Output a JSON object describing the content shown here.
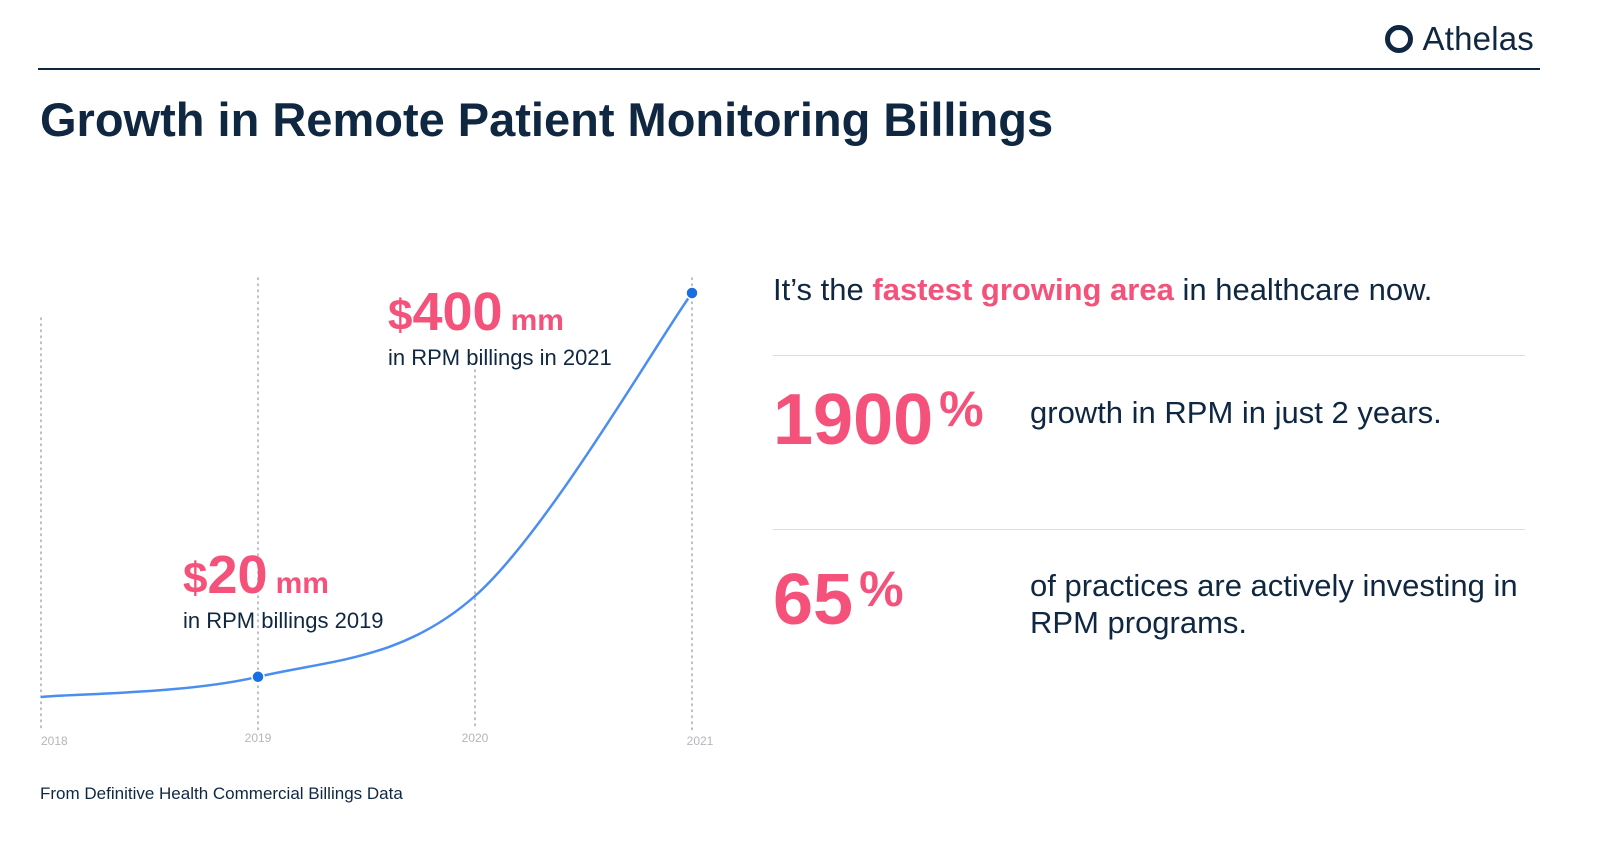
{
  "brand": {
    "logo_text": "Athelas"
  },
  "title": "Growth in Remote Patient Monitoring Billings",
  "chart_data": {
    "type": "line",
    "x": [
      "2018",
      "2019",
      "2020",
      "2021"
    ],
    "values": [
      0,
      20,
      100,
      400
    ],
    "ylabel": "",
    "xlabel": "",
    "unit": "$ mm",
    "highlighted_points": [
      "2019",
      "2021"
    ],
    "line_color": "#4a8ef0",
    "point_color": "#1a6fe0",
    "gridlines": "vertical dotted at each year"
  },
  "callouts": {
    "c2021": {
      "symbol": "$",
      "value": "400",
      "unit": "mm",
      "caption": "in RPM billings in 2021"
    },
    "c2019": {
      "symbol": "$",
      "value": "20",
      "unit": "mm",
      "caption": "in RPM billings 2019"
    }
  },
  "source": "From Definitive Health Commercial Billings Data",
  "right_panel": {
    "tagline": {
      "before": "It’s the ",
      "highlight": "fastest growing area",
      "after": " in healthcare now."
    },
    "stats": [
      {
        "value": "1900",
        "unit": "%",
        "text": "growth in RPM in just 2 years."
      },
      {
        "value": "65",
        "unit": "%",
        "text": "of practices are actively investing in RPM programs."
      }
    ]
  },
  "colors": {
    "navy": "#0f2741",
    "pink": "#f4527a",
    "blue": "#4a8ef0",
    "rule": "#dcdde0"
  }
}
